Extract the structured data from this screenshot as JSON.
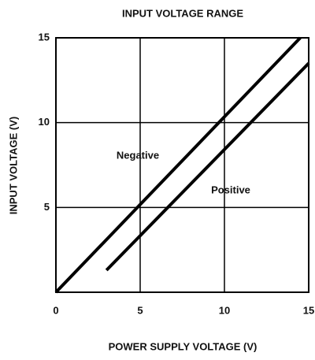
{
  "chart_data": {
    "type": "line",
    "title": "INPUT VOLTAGE RANGE",
    "xlabel": "POWER SUPPLY VOLTAGE (V)",
    "ylabel": "INPUT VOLTAGE (V)",
    "series": [
      {
        "name": "Negative",
        "color": "#000000",
        "x": [
          0,
          14.5
        ],
        "values": [
          0,
          15
        ]
      },
      {
        "name": "Positive",
        "color": "#000000",
        "x": [
          3,
          15
        ],
        "values": [
          1.3,
          13.5
        ]
      }
    ],
    "xlim": [
      0,
      15
    ],
    "ylim": [
      0,
      15
    ],
    "xticks": [
      0,
      5,
      10,
      15
    ],
    "yticks": [
      5,
      10,
      15
    ],
    "grid": true
  }
}
